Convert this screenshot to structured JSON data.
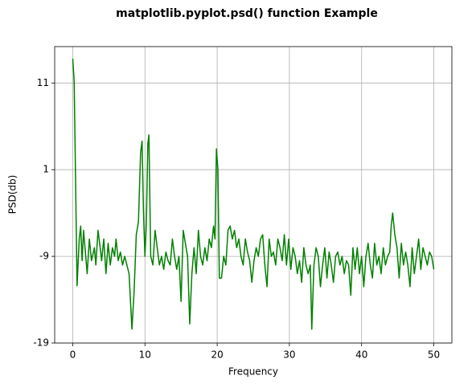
{
  "chart_data": {
    "type": "line",
    "title": "matplotlib.pyplot.psd() function Example",
    "xlabel": "Frequency",
    "ylabel": "PSD(db)",
    "x": [
      0,
      0.2,
      0.6,
      0.9,
      1.1,
      1.3,
      1.5,
      1.8,
      2,
      2.3,
      2.6,
      3,
      3.2,
      3.5,
      3.8,
      4,
      4.3,
      4.6,
      4.9,
      5.2,
      5.5,
      5.8,
      6,
      6.3,
      6.6,
      6.9,
      7.2,
      7.5,
      7.8,
      8.2,
      8.5,
      8.8,
      9.1,
      9.4,
      9.6,
      9.8,
      10,
      10.2,
      10.4,
      10.55,
      10.8,
      11.1,
      11.4,
      11.7,
      12,
      12.3,
      12.6,
      12.9,
      13.2,
      13.5,
      13.8,
      14.1,
      14.4,
      14.7,
      15,
      15.3,
      15.6,
      15.9,
      16.2,
      16.5,
      16.8,
      17.1,
      17.4,
      17.7,
      18,
      18.3,
      18.6,
      18.9,
      19.2,
      19.5,
      19.7,
      19.9,
      20.1,
      20.3,
      20.6,
      20.9,
      21.2,
      21.5,
      21.8,
      22.1,
      22.4,
      22.7,
      23,
      23.3,
      23.6,
      23.9,
      24.2,
      24.5,
      24.8,
      25.1,
      25.4,
      25.7,
      26,
      26.3,
      26.6,
      26.9,
      27.2,
      27.5,
      27.8,
      28.1,
      28.4,
      28.7,
      29,
      29.3,
      29.6,
      29.9,
      30.2,
      30.5,
      30.8,
      31.1,
      31.4,
      31.7,
      32,
      32.3,
      32.6,
      32.9,
      33.1,
      33.4,
      33.7,
      34,
      34.3,
      34.6,
      34.9,
      35.2,
      35.5,
      35.8,
      36.1,
      36.4,
      36.7,
      37,
      37.3,
      37.6,
      37.9,
      38.2,
      38.5,
      38.8,
      39.1,
      39.4,
      39.7,
      40,
      40.3,
      40.6,
      40.9,
      41.2,
      41.5,
      41.8,
      42.1,
      42.4,
      42.7,
      43,
      43.3,
      43.6,
      43.9,
      44.1,
      44.3,
      44.6,
      44.9,
      45.2,
      45.5,
      45.8,
      46.1,
      46.4,
      46.7,
      47,
      47.3,
      47.6,
      47.9,
      48.2,
      48.5,
      48.8,
      49.1,
      49.4,
      49.7,
      50
    ],
    "series": [
      {
        "color": "#008000",
        "values": [
          13.8,
          11.2,
          -12.4,
          -7,
          -5.5,
          -9.5,
          -6,
          -9,
          -11,
          -7,
          -9.5,
          -8,
          -10,
          -6,
          -8,
          -9.5,
          -7,
          -11,
          -7.5,
          -10,
          -8,
          -9,
          -7,
          -9.5,
          -8.5,
          -10,
          -9,
          -10,
          -11,
          -17.4,
          -13,
          -6.5,
          -5,
          3,
          4.3,
          -4,
          -9,
          -5,
          4,
          5,
          -9,
          -10,
          -6,
          -8,
          -10,
          -9,
          -10.5,
          -8.5,
          -9.5,
          -10,
          -7,
          -9,
          -10.5,
          -9,
          -14.2,
          -6,
          -7.5,
          -9,
          -16.8,
          -11,
          -8,
          -11,
          -6,
          -9,
          -10,
          -8,
          -9.5,
          -7,
          -8,
          -5.5,
          -7,
          3.4,
          1,
          -11.5,
          -11.5,
          -9,
          -10,
          -6,
          -5.5,
          -7,
          -6,
          -8,
          -7,
          -9,
          -10,
          -7,
          -8.5,
          -9.5,
          -12,
          -9.5,
          -8,
          -9,
          -7,
          -6.5,
          -10,
          -12.5,
          -7,
          -9,
          -8.5,
          -10,
          -7,
          -8,
          -9.5,
          -6.5,
          -10,
          -7,
          -10.5,
          -8,
          -9,
          -11,
          -9.5,
          -12,
          -8,
          -10,
          -11,
          -10,
          -17.4,
          -10,
          -8,
          -9,
          -12.5,
          -10,
          -8,
          -11.5,
          -8.5,
          -10,
          -12,
          -9,
          -8.5,
          -10,
          -9,
          -11,
          -9.5,
          -10,
          -13.5,
          -8,
          -10.5,
          -8,
          -11,
          -9,
          -12.5,
          -9,
          -7.5,
          -10,
          -11.5,
          -7.5,
          -10,
          -9,
          -11,
          -8,
          -10,
          -9,
          -8.5,
          -5.5,
          -4,
          -6.5,
          -8,
          -11.5,
          -7.5,
          -10,
          -8.5,
          -10,
          -12.5,
          -8,
          -11,
          -9,
          -7,
          -10.5,
          -8,
          -9,
          -10,
          -8.5,
          -9,
          -10.5
        ]
      }
    ],
    "xlim": [
      -2.5,
      52.5
    ],
    "ylim": [
      -19,
      15.2
    ],
    "xticks": [
      0,
      10,
      20,
      30,
      40,
      50
    ],
    "yticks": [
      -19,
      -9,
      1,
      11
    ],
    "grid": true
  }
}
